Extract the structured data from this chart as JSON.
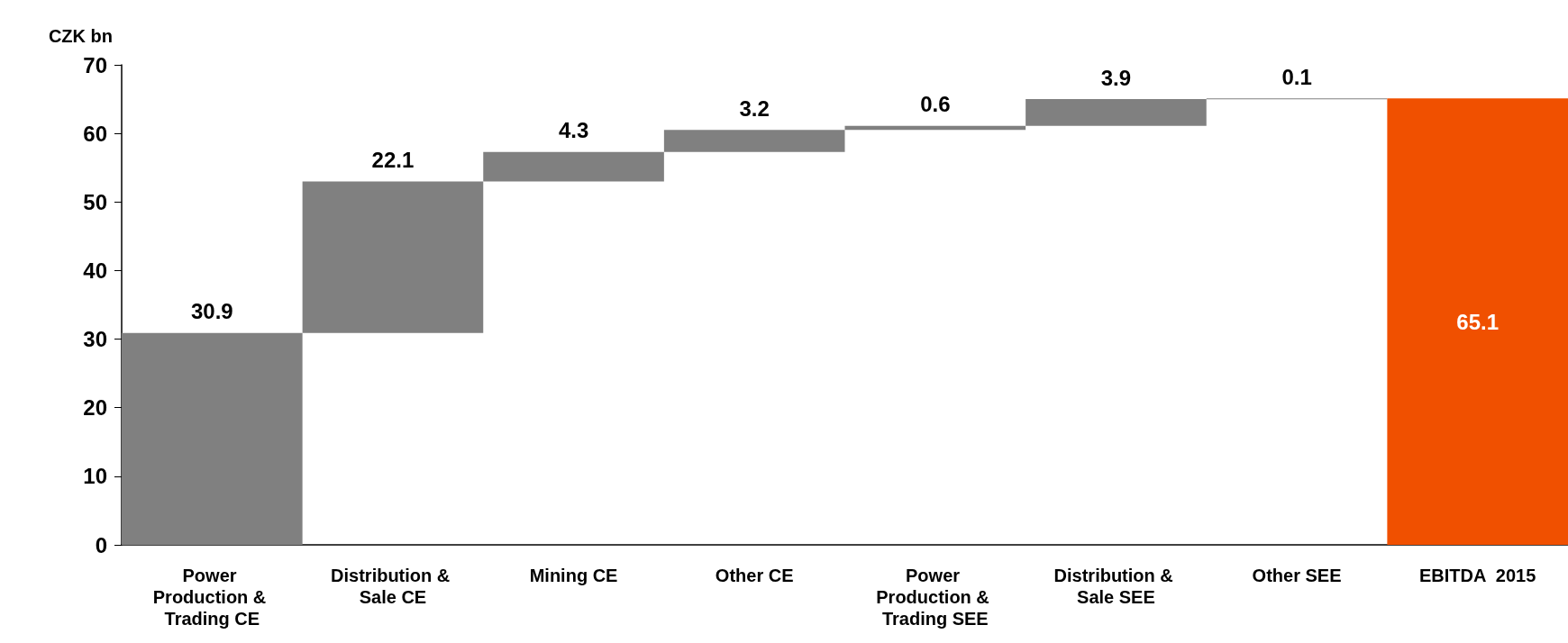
{
  "chart_data": {
    "type": "bar",
    "ylabel": "CZK bn",
    "categories": [
      "Power Production & Trading CE",
      "Distribution & Sale CE",
      "Mining CE",
      "Other CE",
      "Power Production & Trading SEE",
      "Distribution & Sale SEE",
      "Other SEE",
      "EBITDA  2015"
    ],
    "values": [
      30.9,
      22.1,
      4.3,
      3.2,
      0.6,
      3.9,
      0.1,
      65.1
    ],
    "base": [
      0,
      30.9,
      53.0,
      57.3,
      60.5,
      61.1,
      65.0,
      0
    ],
    "colors": [
      "#808080",
      "#808080",
      "#808080",
      "#808080",
      "#808080",
      "#808080",
      "#808080",
      "#f05000"
    ],
    "ylim": [
      0,
      70
    ],
    "yticks": [
      0,
      10,
      20,
      30,
      40,
      50,
      60,
      70
    ],
    "data_labels": true,
    "grid": false
  }
}
